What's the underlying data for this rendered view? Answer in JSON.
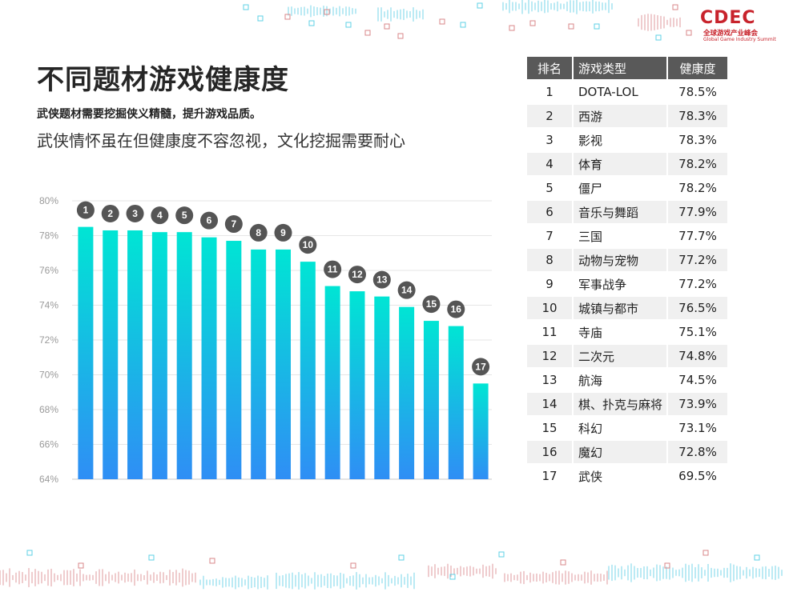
{
  "logo": {
    "mark": "CDEC",
    "cn": "全球游戏产业峰会",
    "en": "Global Game Industry Summit"
  },
  "header": {
    "title": "不同题材游戏健康度",
    "subtitle1": "武侠题材需要挖掘侠义精髓，提升游戏品质。",
    "subtitle2": "武侠情怀虽在但健康度不容忽视，文化挖掘需要耐心"
  },
  "colors": {
    "bar_top": "#00e5d4",
    "bar_bottom": "#2f8ef5",
    "badge": "#555555",
    "table_header": "#595959",
    "brand": "#c8232c"
  },
  "chart_data": {
    "type": "bar",
    "categories": [
      "1",
      "2",
      "3",
      "4",
      "5",
      "6",
      "7",
      "8",
      "9",
      "10",
      "11",
      "12",
      "13",
      "14",
      "15",
      "16",
      "17"
    ],
    "values": [
      78.5,
      78.3,
      78.3,
      78.2,
      78.2,
      77.9,
      77.7,
      77.2,
      77.2,
      76.5,
      75.1,
      74.8,
      74.5,
      73.9,
      73.1,
      72.8,
      69.5
    ],
    "yticks": [
      "64%",
      "66%",
      "68%",
      "70%",
      "72%",
      "74%",
      "76%",
      "78%",
      "80%"
    ],
    "ylim": [
      64,
      80
    ],
    "grid": true
  },
  "table": {
    "headers": [
      "排名",
      "游戏类型",
      "健康度"
    ],
    "rows": [
      [
        "1",
        "DOTA-LOL",
        "78.5%"
      ],
      [
        "2",
        "西游",
        "78.3%"
      ],
      [
        "3",
        "影视",
        "78.3%"
      ],
      [
        "4",
        "体育",
        "78.2%"
      ],
      [
        "5",
        "僵尸",
        "78.2%"
      ],
      [
        "6",
        "音乐与舞蹈",
        "77.9%"
      ],
      [
        "7",
        "三国",
        "77.7%"
      ],
      [
        "8",
        "动物与宠物",
        "77.2%"
      ],
      [
        "9",
        "军事战争",
        "77.2%"
      ],
      [
        "10",
        "城镇与都市",
        "76.5%"
      ],
      [
        "11",
        "寺庙",
        "75.1%"
      ],
      [
        "12",
        "二次元",
        "74.8%"
      ],
      [
        "13",
        "航海",
        "74.5%"
      ],
      [
        "14",
        "棋、扑克与麻将",
        "73.9%"
      ],
      [
        "15",
        "科幻",
        "73.1%"
      ],
      [
        "16",
        "魔幻",
        "72.8%"
      ],
      [
        "17",
        "武侠",
        "69.5%"
      ]
    ]
  }
}
